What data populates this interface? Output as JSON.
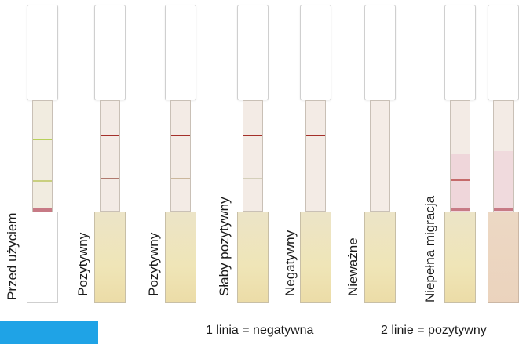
{
  "labels": {
    "before_use": "Przed użyciem",
    "positive_1": "Pozytywny",
    "positive_2": "Pozytywny",
    "weak_positive": "Słaby pozytywny",
    "negative": "Negatywny",
    "invalid": "Nieważne",
    "incomplete_migration": "Niepełna migracja"
  },
  "legend": {
    "one_line": "1 linia = negatywna",
    "two_lines": "2 linie = pozytywny"
  },
  "colors": {
    "legend_box": "#1fa3e6",
    "test_line_red": "#a4302a",
    "control_line": "#c7b78f",
    "green_line": "#b7d05a",
    "pink_zone": "#e8c9cf"
  }
}
